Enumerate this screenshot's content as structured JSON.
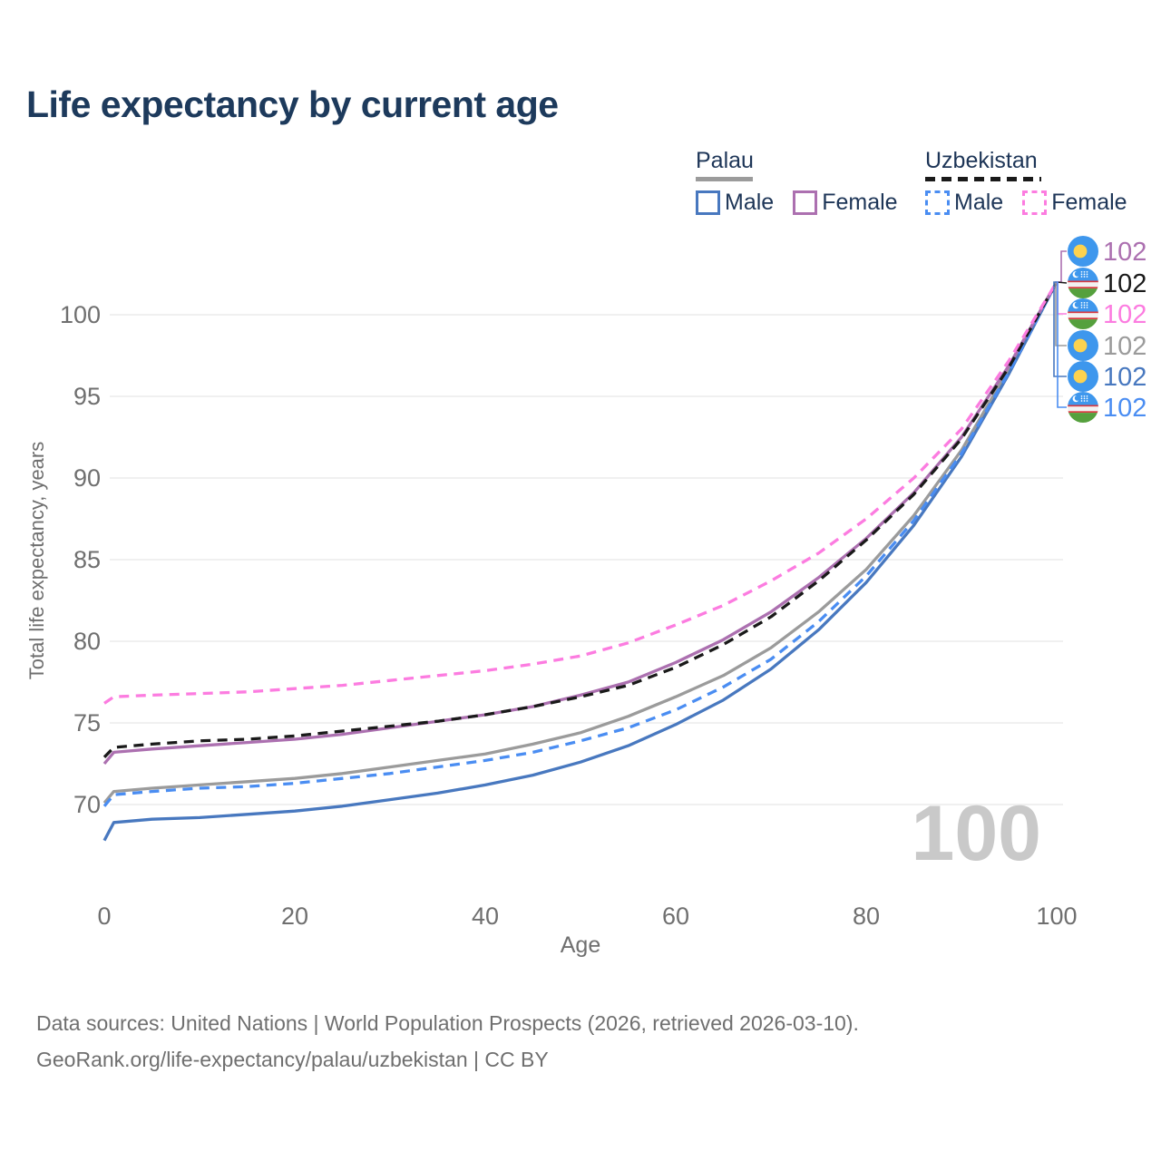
{
  "header": {
    "title": "Life expectancy by current age"
  },
  "legend": {
    "palau": {
      "label": "Palau",
      "male_label": "Male",
      "female_label": "Female",
      "line_style": "solid",
      "total_color": "#9b9b9b",
      "male_color": "#4878bf",
      "female_color": "#ac70b0"
    },
    "uzbekistan": {
      "label": "Uzbekistan",
      "male_label": "Male",
      "female_label": "Female",
      "line_style": "dashed",
      "total_color": "#1a1a1a",
      "male_color": "#4a8df2",
      "female_color": "#fc7ce0"
    }
  },
  "chart_data": {
    "type": "line",
    "title": "Life expectancy by current age",
    "xlabel": "Age",
    "ylabel": "Total life expectancy, years",
    "xlim": [
      0,
      100
    ],
    "ylim": [
      66,
      103
    ],
    "x_ticks": [
      0,
      20,
      40,
      60,
      80,
      100
    ],
    "y_ticks": [
      70,
      75,
      80,
      85,
      90,
      95,
      100
    ],
    "grid": "horizontal",
    "legend_position": "top-right",
    "watermark": "100",
    "x": [
      0,
      1,
      5,
      10,
      15,
      20,
      25,
      30,
      35,
      40,
      45,
      50,
      55,
      60,
      65,
      70,
      75,
      80,
      85,
      90,
      95,
      100
    ],
    "series": [
      {
        "name": "Palau",
        "country": "Palau",
        "sex": "Both",
        "style": "solid",
        "color": "#9b9b9b",
        "values": [
          70.1,
          70.8,
          71.0,
          71.2,
          71.4,
          71.6,
          71.9,
          72.3,
          72.7,
          73.1,
          73.7,
          74.4,
          75.4,
          76.6,
          77.9,
          79.6,
          81.8,
          84.4,
          87.7,
          91.7,
          96.7,
          102
        ]
      },
      {
        "name": "Palau Male",
        "country": "Palau",
        "sex": "Male",
        "style": "solid",
        "color": "#4878bf",
        "values": [
          67.8,
          68.9,
          69.1,
          69.2,
          69.4,
          69.6,
          69.9,
          70.3,
          70.7,
          71.2,
          71.8,
          72.6,
          73.6,
          74.9,
          76.4,
          78.3,
          80.7,
          83.6,
          87.1,
          91.3,
          96.4,
          102
        ]
      },
      {
        "name": "Uzbekistan Male",
        "country": "Uzbekistan",
        "sex": "Male",
        "style": "dashed",
        "color": "#4a8df2",
        "values": [
          69.9,
          70.6,
          70.8,
          71.0,
          71.1,
          71.3,
          71.6,
          71.9,
          72.3,
          72.7,
          73.2,
          73.9,
          74.7,
          75.8,
          77.2,
          78.9,
          81.2,
          84.0,
          87.4,
          91.5,
          96.5,
          102
        ]
      },
      {
        "name": "Palau Female",
        "country": "Palau",
        "sex": "Female",
        "style": "solid",
        "color": "#ac70b0",
        "values": [
          72.5,
          73.2,
          73.4,
          73.6,
          73.8,
          74.0,
          74.3,
          74.7,
          75.1,
          75.5,
          76.0,
          76.7,
          77.5,
          78.7,
          80.1,
          81.8,
          83.9,
          86.3,
          89.1,
          92.5,
          96.9,
          102
        ]
      },
      {
        "name": "Uzbekistan",
        "country": "Uzbekistan",
        "sex": "Both",
        "style": "dashed",
        "color": "#1a1a1a",
        "values": [
          72.9,
          73.5,
          73.7,
          73.9,
          74.0,
          74.2,
          74.5,
          74.8,
          75.1,
          75.5,
          76.0,
          76.6,
          77.3,
          78.4,
          79.8,
          81.5,
          83.7,
          86.2,
          89.0,
          92.4,
          96.8,
          102
        ]
      },
      {
        "name": "Uzbekistan Female",
        "country": "Uzbekistan",
        "sex": "Female",
        "style": "dashed",
        "color": "#fc7ce0",
        "values": [
          76.2,
          76.6,
          76.7,
          76.8,
          76.9,
          77.1,
          77.3,
          77.6,
          77.9,
          78.2,
          78.6,
          79.1,
          79.9,
          81.0,
          82.2,
          83.7,
          85.4,
          87.5,
          90.0,
          93.0,
          97.2,
          102
        ]
      }
    ],
    "end_labels": [
      {
        "flag": "palau",
        "series": "Palau Female",
        "value": "102",
        "color": "#ac70b0"
      },
      {
        "flag": "uzbekistan",
        "series": "Uzbekistan",
        "value": "102",
        "color": "#1a1a1a"
      },
      {
        "flag": "uzbekistan",
        "series": "Uzbekistan Female",
        "value": "102",
        "color": "#fc7ce0"
      },
      {
        "flag": "palau",
        "series": "Palau",
        "value": "102",
        "color": "#9b9b9b"
      },
      {
        "flag": "palau",
        "series": "Palau Male",
        "value": "102",
        "color": "#4878bf"
      },
      {
        "flag": "uzbekistan",
        "series": "Uzbekistan Male",
        "value": "102",
        "color": "#4a8df2"
      }
    ]
  },
  "footer": {
    "line1": "Data sources: United Nations | World Population Prospects (2026, retrieved 2026-03-10).",
    "line2": "GeoRank.org/life-expectancy/palau/uzbekistan | CC BY"
  }
}
